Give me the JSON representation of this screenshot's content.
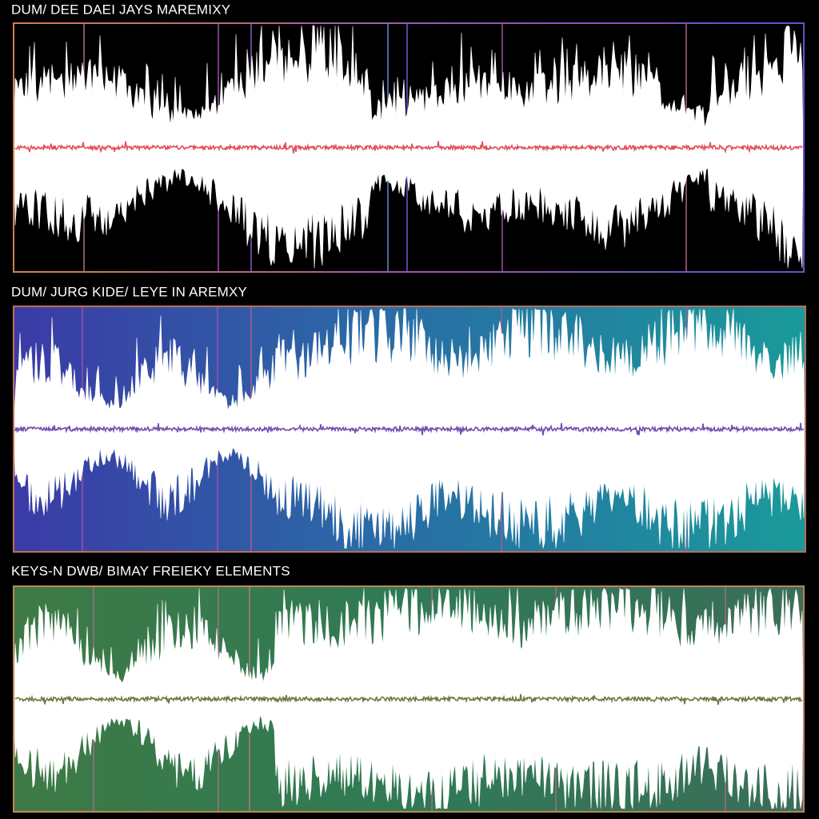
{
  "tracks": [
    {
      "title": "DUM/ DEE DAEI JAYS MAREMIXY"
    },
    {
      "title": "DUM/ JURG KIDE/ LEYE IN AREMXY"
    },
    {
      "title": "KEYS-N DWB/ BIMAY FREIEKY ELEMENTS"
    }
  ]
}
